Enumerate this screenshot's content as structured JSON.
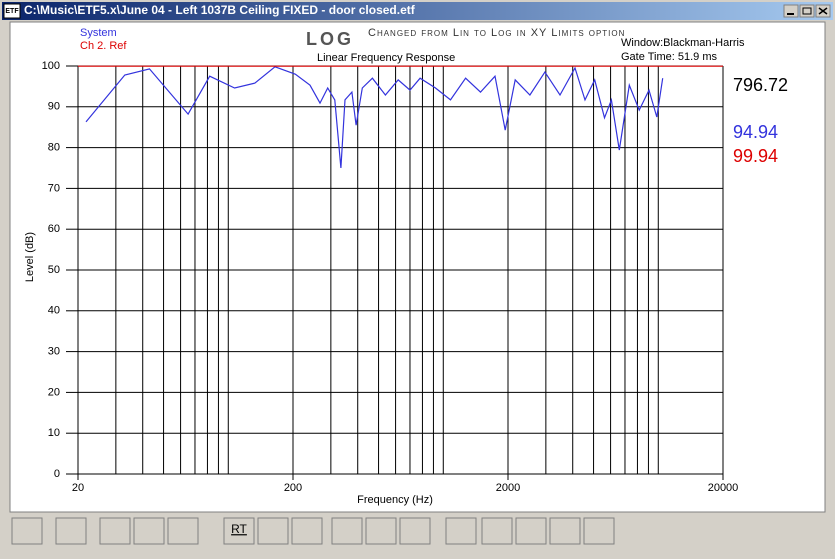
{
  "window": {
    "title": "C:\\Music\\ETF5.x\\June 04 - Left 1037B Ceiling FIXED - door closed.etf",
    "icon": "ETF"
  },
  "chart_data": {
    "type": "line",
    "annotations": {
      "log": "LOG",
      "note": "Changed from Lin to Log in XY Limits option",
      "subtitle": "Linear Frequency Response",
      "window": "Window:Blackman-Harris",
      "gate": "Gate Time: 51.9 ms"
    },
    "x_label": "Frequency (Hz)",
    "y_label": "Level (dB)",
    "xscale": "log",
    "xlim": [
      20,
      20000
    ],
    "xticks": [
      20,
      200,
      2000,
      20000
    ],
    "ylim": [
      0,
      100
    ],
    "yticks": [
      0,
      10,
      20,
      30,
      40,
      50,
      60,
      70,
      80,
      90,
      100
    ],
    "grid": true,
    "series": [
      {
        "name": "System",
        "color": "#3333dd",
        "x": [
          21.8,
          33,
          43,
          65,
          82,
          107,
          133,
          165,
          205,
          240,
          267,
          290,
          313,
          334,
          349,
          376,
          393,
          420,
          468,
          538,
          617,
          700,
          780,
          920,
          1080,
          1270,
          1490,
          1740,
          1940,
          2160,
          2530,
          2970,
          3490,
          4100,
          4560,
          5060,
          5620,
          6050,
          6590,
          7330,
          8150,
          9050,
          9840,
          10480
        ],
        "values": [
          86.3,
          97.8,
          99.3,
          88.2,
          97.5,
          94.6,
          95.8,
          99.8,
          98,
          95.3,
          90.9,
          94.6,
          91.7,
          75,
          91.7,
          93.6,
          85.5,
          94.6,
          97,
          92.9,
          96.6,
          94.1,
          97,
          94.6,
          91.7,
          97,
          93.6,
          97.5,
          84.3,
          96.6,
          92.9,
          98.5,
          92.9,
          99.5,
          91.7,
          96.6,
          87.3,
          91.7,
          79.4,
          95.3,
          89.2,
          94.1,
          87.5,
          97
        ]
      },
      {
        "name": "Ch 2. Ref",
        "color": "#dd0000",
        "x": [
          20,
          20000
        ],
        "values": [
          99.94,
          99.94
        ]
      }
    ],
    "readouts": [
      {
        "text": "796.72",
        "color": "#000000"
      },
      {
        "text": "94.94",
        "color": "#3333dd"
      },
      {
        "text": "99.94",
        "color": "#dd0000"
      }
    ]
  },
  "toolbar": {
    "rt": "RT"
  }
}
